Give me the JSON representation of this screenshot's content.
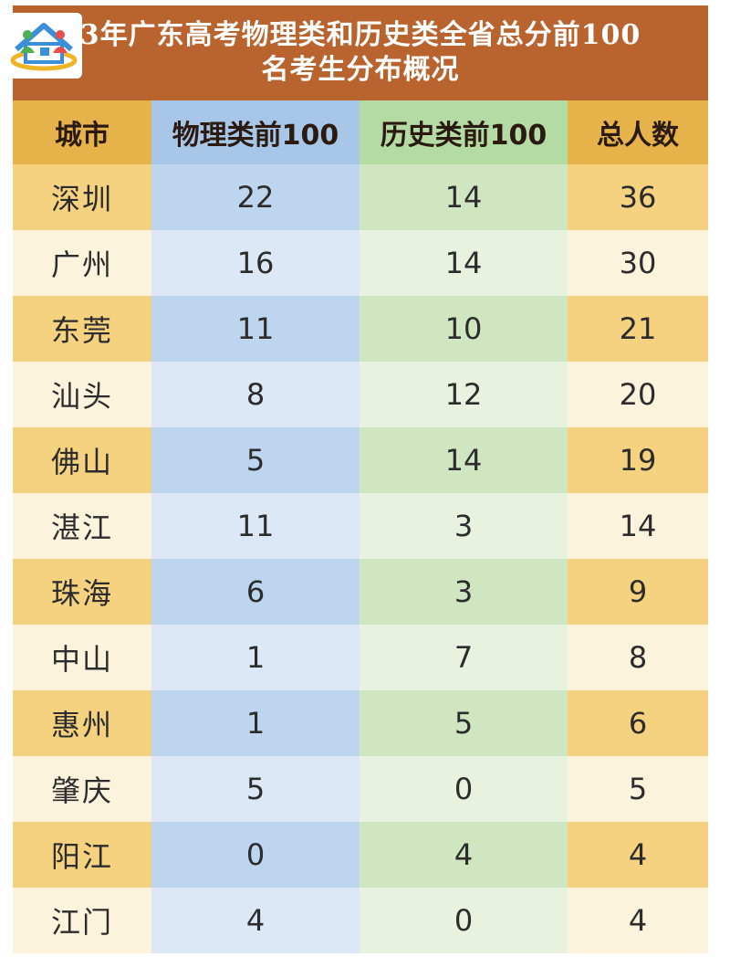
{
  "title": {
    "line1": "3年广东高考物理类和历史类全省总分前100",
    "line2": "名考生分布概况"
  },
  "table": {
    "headers": [
      "城市",
      "物理类前100",
      "历史类前100",
      "总人数"
    ],
    "rows": [
      [
        "深圳",
        "22",
        "14",
        "36"
      ],
      [
        "广州",
        "16",
        "14",
        "30"
      ],
      [
        "东莞",
        "11",
        "10",
        "21"
      ],
      [
        "汕头",
        "8",
        "12",
        "20"
      ],
      [
        "佛山",
        "5",
        "14",
        "19"
      ],
      [
        "湛江",
        "11",
        "3",
        "14"
      ],
      [
        "珠海",
        "6",
        "3",
        "9"
      ],
      [
        "中山",
        "1",
        "7",
        "8"
      ],
      [
        "惠州",
        "1",
        "5",
        "6"
      ],
      [
        "肇庆",
        "5",
        "0",
        "5"
      ],
      [
        "阳江",
        "0",
        "4",
        "4"
      ],
      [
        "江门",
        "4",
        "0",
        "4"
      ]
    ]
  },
  "colors": {
    "title_bg": "#b9642f",
    "gold": "#f5d27f",
    "blue": "#bdd5ef",
    "green": "#cfe6c0"
  },
  "logo": {
    "icon": "house-logo-icon"
  }
}
